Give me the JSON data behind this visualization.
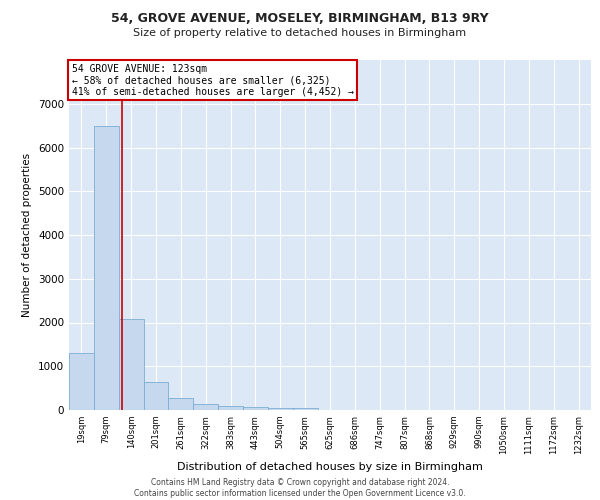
{
  "title_line1": "54, GROVE AVENUE, MOSELEY, BIRMINGHAM, B13 9RY",
  "title_line2": "Size of property relative to detached houses in Birmingham",
  "xlabel": "Distribution of detached houses by size in Birmingham",
  "ylabel": "Number of detached properties",
  "categories": [
    "19sqm",
    "79sqm",
    "140sqm",
    "201sqm",
    "261sqm",
    "322sqm",
    "383sqm",
    "443sqm",
    "504sqm",
    "565sqm",
    "625sqm",
    "686sqm",
    "747sqm",
    "807sqm",
    "868sqm",
    "929sqm",
    "990sqm",
    "1050sqm",
    "1111sqm",
    "1172sqm",
    "1232sqm"
  ],
  "bar_heights": [
    1300,
    6500,
    2080,
    640,
    280,
    140,
    90,
    60,
    55,
    55,
    0,
    0,
    0,
    0,
    0,
    0,
    0,
    0,
    0,
    0,
    0
  ],
  "bar_color": "#c5d8ee",
  "bar_edge_color": "#7aadd4",
  "annotation_title": "54 GROVE AVENUE: 123sqm",
  "annotation_line1": "← 58% of detached houses are smaller (6,325)",
  "annotation_line2": "41% of semi-detached houses are larger (4,452) →",
  "vline_x": 1.65,
  "vline_color": "#cc0000",
  "ylim": [
    0,
    8000
  ],
  "yticks": [
    0,
    1000,
    2000,
    3000,
    4000,
    5000,
    6000,
    7000
  ],
  "footer_line1": "Contains HM Land Registry data © Crown copyright and database right 2024.",
  "footer_line2": "Contains public sector information licensed under the Open Government Licence v3.0.",
  "background_color": "#ffffff",
  "plot_background_color": "#dce8f5"
}
